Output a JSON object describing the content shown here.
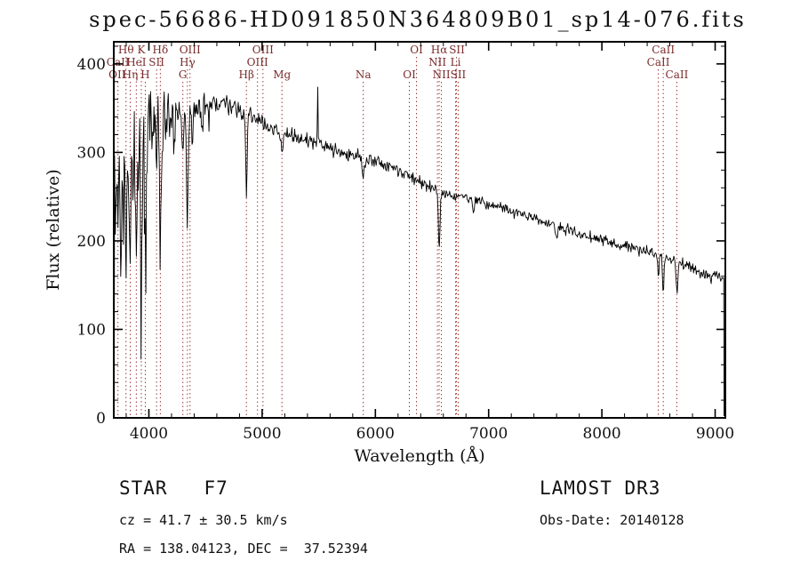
{
  "title": "spec-56686-HD091850N364809B01_sp14-076.fits",
  "annotations": {
    "class_label": "STAR   F7",
    "survey": "LAMOST DR3",
    "cz_line": "cz = 41.7 ± 30.5 km/s",
    "obs_date": "Obs-Date: 20140128",
    "radec_line": "RA = 138.04123, DEC =  37.52394"
  },
  "chart_data": {
    "type": "line",
    "title": "spec-56686-HD091850N364809B01_sp14-076.fits",
    "xlabel": "Wavelength (Å)",
    "ylabel": "Flux (relative)",
    "xlim": [
      3690,
      9090
    ],
    "ylim": [
      0,
      425
    ],
    "xticks": [
      4000,
      5000,
      6000,
      7000,
      8000,
      9000
    ],
    "yticks": [
      0,
      100,
      200,
      300,
      400
    ],
    "x_minor_step": 200,
    "y_minor_step": 20,
    "grid": false,
    "line_color": "#000000",
    "marker_color": "#9e3a3a",
    "label_color": "#7b2b2b",
    "continuum": [
      [
        3697,
        250
      ],
      [
        3730,
        278
      ],
      [
        3760,
        295
      ],
      [
        3800,
        305
      ],
      [
        3860,
        315
      ],
      [
        3920,
        320
      ],
      [
        3990,
        325
      ],
      [
        4060,
        330
      ],
      [
        4130,
        335
      ],
      [
        4200,
        340
      ],
      [
        4280,
        344
      ],
      [
        4360,
        348
      ],
      [
        4440,
        351
      ],
      [
        4520,
        353
      ],
      [
        4620,
        355
      ],
      [
        4720,
        353
      ],
      [
        4800,
        348
      ],
      [
        4880,
        343
      ],
      [
        4960,
        336
      ],
      [
        5040,
        330
      ],
      [
        5120,
        325
      ],
      [
        5200,
        320
      ],
      [
        5290,
        317
      ],
      [
        5380,
        314
      ],
      [
        5470,
        311
      ],
      [
        5560,
        307
      ],
      [
        5680,
        301
      ],
      [
        5800,
        296
      ],
      [
        5920,
        292
      ],
      [
        6040,
        288
      ],
      [
        6160,
        282
      ],
      [
        6280,
        275
      ],
      [
        6400,
        266
      ],
      [
        6520,
        258
      ],
      [
        6640,
        252
      ],
      [
        6760,
        250
      ],
      [
        6880,
        246
      ],
      [
        7000,
        242
      ],
      [
        7120,
        237
      ],
      [
        7240,
        232
      ],
      [
        7360,
        227
      ],
      [
        7480,
        222
      ],
      [
        7600,
        217
      ],
      [
        7720,
        212
      ],
      [
        7840,
        207
      ],
      [
        7960,
        203
      ],
      [
        8080,
        198
      ],
      [
        8200,
        193
      ],
      [
        8320,
        189
      ],
      [
        8440,
        186
      ],
      [
        8560,
        182
      ],
      [
        8680,
        176
      ],
      [
        8800,
        169
      ],
      [
        8900,
        163
      ],
      [
        8980,
        160
      ],
      [
        9030,
        163
      ],
      [
        9078,
        156
      ]
    ],
    "absorption_lines": [
      {
        "wl": 3727,
        "depth": 55,
        "sigma": 5
      },
      {
        "wl": 3752,
        "depth": 140,
        "sigma": 6
      },
      {
        "wl": 3772,
        "depth": 85,
        "sigma": 5
      },
      {
        "wl": 3798,
        "depth": 130,
        "sigma": 6
      },
      {
        "wl": 3820,
        "depth": 60,
        "sigma": 4
      },
      {
        "wl": 3835,
        "depth": 135,
        "sigma": 6
      },
      {
        "wl": 3860,
        "depth": 70,
        "sigma": 4
      },
      {
        "wl": 3889,
        "depth": 140,
        "sigma": 6
      },
      {
        "wl": 3910,
        "depth": 60,
        "sigma": 4
      },
      {
        "wl": 3933,
        "depth": 170,
        "sigma": 7
      },
      {
        "wl": 3970,
        "depth": 165,
        "sigma": 7
      },
      {
        "wl": 4026,
        "depth": 45,
        "sigma": 4
      },
      {
        "wl": 4068,
        "depth": 48,
        "sigma": 4
      },
      {
        "wl": 4101,
        "depth": 145,
        "sigma": 7
      },
      {
        "wl": 4144,
        "depth": 40,
        "sigma": 4
      },
      {
        "wl": 4227,
        "depth": 45,
        "sigma": 4
      },
      {
        "wl": 4300,
        "depth": 55,
        "sigma": 6
      },
      {
        "wl": 4340,
        "depth": 135,
        "sigma": 7
      },
      {
        "wl": 4383,
        "depth": 50,
        "sigma": 4
      },
      {
        "wl": 4471,
        "depth": 35,
        "sigma": 4
      },
      {
        "wl": 4530,
        "depth": 25,
        "sigma": 4
      },
      {
        "wl": 4861,
        "depth": 92,
        "sigma": 6
      },
      {
        "wl": 5175,
        "depth": 26,
        "sigma": 9
      },
      {
        "wl": 5893,
        "depth": 25,
        "sigma": 7
      },
      {
        "wl": 6563,
        "depth": 68,
        "sigma": 7
      },
      {
        "wl": 6867,
        "depth": 18,
        "sigma": 8
      },
      {
        "wl": 7600,
        "depth": 16,
        "sigma": 8
      },
      {
        "wl": 8498,
        "depth": 22,
        "sigma": 6
      },
      {
        "wl": 8542,
        "depth": 40,
        "sigma": 7
      },
      {
        "wl": 8662,
        "depth": 33,
        "sigma": 7
      }
    ],
    "emission_spikes": [
      {
        "wl": 5490,
        "height": 62,
        "sigma": 3
      }
    ],
    "noise_profile": [
      [
        3697,
        42
      ],
      [
        3800,
        38
      ],
      [
        3950,
        34
      ],
      [
        4100,
        26
      ],
      [
        4250,
        18
      ],
      [
        4400,
        12
      ],
      [
        4600,
        9
      ],
      [
        4900,
        7
      ],
      [
        5400,
        6
      ],
      [
        6000,
        5.5
      ],
      [
        6600,
        5
      ],
      [
        7200,
        4.5
      ],
      [
        8000,
        4.5
      ],
      [
        8600,
        5
      ],
      [
        9080,
        5.5
      ]
    ],
    "edge_drop": {
      "left_wl": 3694,
      "right_wl": 9078
    },
    "spectral_lines": [
      {
        "wl": 3727,
        "row": 2
      },
      {
        "wl": 3798,
        "row": 0
      },
      {
        "wl": 3835,
        "row": 2
      },
      {
        "wl": 3889,
        "row": 1
      },
      {
        "wl": 3933,
        "row": 0
      },
      {
        "wl": 3968,
        "row": 2
      },
      {
        "wl": 4068,
        "row": 1
      },
      {
        "wl": 4101,
        "row": 0
      },
      {
        "wl": 4300,
        "row": 2
      },
      {
        "wl": 4340,
        "row": 1
      },
      {
        "wl": 4363,
        "row": 0
      },
      {
        "wl": 4861,
        "row": 2
      },
      {
        "wl": 4959,
        "row": 1
      },
      {
        "wl": 5007,
        "row": 0
      },
      {
        "wl": 5175,
        "row": 2
      },
      {
        "wl": 5893,
        "row": 2
      },
      {
        "wl": 6300,
        "row": 2
      },
      {
        "wl": 6363,
        "row": 0
      },
      {
        "wl": 6548,
        "row": 1
      },
      {
        "wl": 6563,
        "row": 0
      },
      {
        "wl": 6583,
        "row": 2
      },
      {
        "wl": 6708,
        "row": 1
      },
      {
        "wl": 6716,
        "row": 0
      },
      {
        "wl": 6731,
        "row": 2
      },
      {
        "wl": 8498,
        "row": 1
      },
      {
        "wl": 8542,
        "row": 0
      },
      {
        "wl": 8662,
        "row": 2
      }
    ],
    "line_labels": [
      {
        "text": "Hθ",
        "wl": 3798,
        "row": 0
      },
      {
        "text": "K",
        "wl": 3933,
        "row": 0
      },
      {
        "text": "Hδ",
        "wl": 4101,
        "row": 0
      },
      {
        "text": "OIII",
        "wl": 4363,
        "row": 0
      },
      {
        "text": "OIII",
        "wl": 5007,
        "row": 0
      },
      {
        "text": "OI",
        "wl": 6363,
        "row": 0
      },
      {
        "text": "Hα",
        "wl": 6563,
        "row": 0
      },
      {
        "text": "SII",
        "wl": 6720,
        "row": 0
      },
      {
        "text": "CaII",
        "wl": 8542,
        "row": 0
      },
      {
        "text": "CaII",
        "wl": 3727,
        "row": 1
      },
      {
        "text": "HeI",
        "wl": 3889,
        "row": 1
      },
      {
        "text": "SII",
        "wl": 4068,
        "row": 1
      },
      {
        "text": "Hγ",
        "wl": 4340,
        "row": 1
      },
      {
        "text": "OIII",
        "wl": 4959,
        "row": 1
      },
      {
        "text": "NII",
        "wl": 6548,
        "row": 1
      },
      {
        "text": "Li",
        "wl": 6708,
        "row": 1
      },
      {
        "text": "CaII",
        "wl": 8498,
        "row": 1
      },
      {
        "text": "OII",
        "wl": 3720,
        "row": 2
      },
      {
        "text": "Hη",
        "wl": 3835,
        "row": 2
      },
      {
        "text": "H",
        "wl": 3968,
        "row": 2
      },
      {
        "text": "G",
        "wl": 4300,
        "row": 2
      },
      {
        "text": "Hβ",
        "wl": 4861,
        "row": 2
      },
      {
        "text": "Mg",
        "wl": 5175,
        "row": 2
      },
      {
        "text": "Na",
        "wl": 5893,
        "row": 2
      },
      {
        "text": "OI",
        "wl": 6300,
        "row": 2
      },
      {
        "text": "NII",
        "wl": 6583,
        "row": 2
      },
      {
        "text": "SII",
        "wl": 6731,
        "row": 2
      },
      {
        "text": "CaII",
        "wl": 8662,
        "row": 2
      }
    ]
  }
}
